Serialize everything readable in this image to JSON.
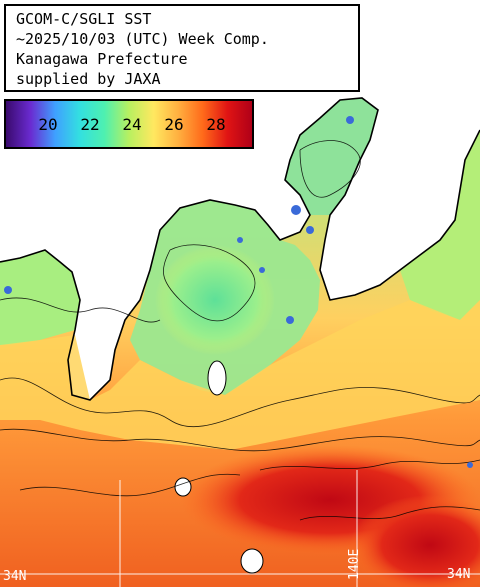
{
  "title": {
    "line1": "GCOM-C/SGLI SST",
    "line2": "~2025/10/03 (UTC) Week Comp.",
    "line3": "Kanagawa Prefecture",
    "line4": "supplied by JAXA"
  },
  "legend": {
    "ticks": [
      "20",
      "22",
      "24",
      "26",
      "28"
    ],
    "colors": [
      "#3a0a6e",
      "#6a2bd0",
      "#3fa0ff",
      "#33e0e0",
      "#4ef0b0",
      "#b8f060",
      "#ffe860",
      "#ffb040",
      "#ff6a1a",
      "#e01414",
      "#b00018"
    ]
  },
  "grid": {
    "lat_label": "34N",
    "lat_label_right": "34N",
    "lon_label": "140E"
  },
  "colors": {
    "land": "#ffffff",
    "coast": "#000000",
    "cool_water": "#7fe89a",
    "warm_water": "#ff9a3a",
    "hot_water": "#e8281a"
  }
}
